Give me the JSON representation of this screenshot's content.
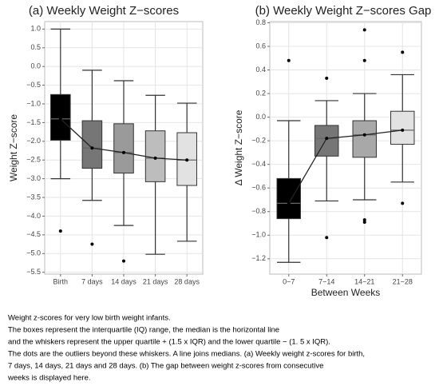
{
  "chart_data": [
    {
      "type": "box",
      "title": "(a) Weekly Weight Z−scores",
      "y_label": "Weight Z−score",
      "categories": [
        "Birth",
        "7 days",
        "14 days",
        "21 days",
        "28 days"
      ],
      "ylim": [
        -5.55,
        1.2
      ],
      "yticks": [
        {
          "value": 1.0,
          "label": "1.0"
        },
        {
          "value": 0.5,
          "label": "0.5"
        },
        {
          "value": 0.0,
          "label": "0.0"
        },
        {
          "value": -0.5,
          "label": "−0.5"
        },
        {
          "value": -1.0,
          "label": "−1.0"
        },
        {
          "value": -1.5,
          "label": "−1.5"
        },
        {
          "value": -2.0,
          "label": "−2.0"
        },
        {
          "value": -2.5,
          "label": "−2.5"
        },
        {
          "value": -3.0,
          "label": "−3.0"
        },
        {
          "value": -3.5,
          "label": "−3.5"
        },
        {
          "value": -4.0,
          "label": "−4.0"
        },
        {
          "value": -4.5,
          "label": "−4.5"
        },
        {
          "value": -5.0,
          "label": "−5.0"
        },
        {
          "value": -5.5,
          "label": "−5.5"
        }
      ],
      "grid": true,
      "boxes": [
        {
          "whisker_high": 1.0,
          "q3": -0.75,
          "median": -1.4,
          "q1": -1.97,
          "whisker_low": -3.0,
          "outliers": [
            -4.4
          ],
          "color": "#000000"
        },
        {
          "whisker_high": -0.1,
          "q3": -1.45,
          "median": -2.18,
          "q1": -2.72,
          "whisker_low": -3.58,
          "outliers": [
            -4.75
          ],
          "color": "#767676"
        },
        {
          "whisker_high": -0.38,
          "q3": -1.53,
          "median": -2.3,
          "q1": -2.85,
          "whisker_low": -4.25,
          "outliers": [
            -5.2
          ],
          "color": "#9a9a9a"
        },
        {
          "whisker_high": -0.77,
          "q3": -1.72,
          "median": -2.45,
          "q1": -3.08,
          "whisker_low": -5.02,
          "outliers": [],
          "color": "#bdbdbd"
        },
        {
          "whisker_high": -0.98,
          "q3": -1.77,
          "median": -2.5,
          "q1": -3.18,
          "whisker_low": -4.67,
          "outliers": [],
          "color": "#e2e2e2"
        }
      ]
    },
    {
      "type": "box",
      "title": "(b) Weekly Weight Z−scores Gap",
      "y_label": "Δ Weight Z−score",
      "x_label": "Between Weeks",
      "categories": [
        "0−7",
        "7−14",
        "14−21",
        "21−28"
      ],
      "ylim": [
        -1.33,
        0.81
      ],
      "yticks": [
        {
          "value": 0.8,
          "label": "0.8"
        },
        {
          "value": 0.6,
          "label": "0.6"
        },
        {
          "value": 0.4,
          "label": "0.4"
        },
        {
          "value": 0.2,
          "label": "0.2"
        },
        {
          "value": 0.0,
          "label": "0.0"
        },
        {
          "value": -0.2,
          "label": "−0.2"
        },
        {
          "value": -0.4,
          "label": "−0.4"
        },
        {
          "value": -0.6,
          "label": "−0.6"
        },
        {
          "value": -0.8,
          "label": "−0.8"
        },
        {
          "value": -1.0,
          "label": "−1.0"
        },
        {
          "value": -1.2,
          "label": "−1.2"
        }
      ],
      "grid": true,
      "boxes": [
        {
          "whisker_high": -0.03,
          "q3": -0.52,
          "median": -0.73,
          "q1": -0.86,
          "whisker_low": -1.23,
          "outliers": [
            0.48
          ],
          "color": "#000000"
        },
        {
          "whisker_high": 0.14,
          "q3": -0.07,
          "median": -0.18,
          "q1": -0.33,
          "whisker_low": -0.71,
          "outliers": [
            0.33,
            -1.02
          ],
          "color": "#767676"
        },
        {
          "whisker_high": 0.2,
          "q3": -0.03,
          "median": -0.15,
          "q1": -0.34,
          "whisker_low": -0.7,
          "outliers": [
            0.74,
            0.48,
            -0.87,
            -0.89
          ],
          "color": "#a8a8a8"
        },
        {
          "whisker_high": 0.36,
          "q3": 0.05,
          "median": -0.11,
          "q1": -0.23,
          "whisker_low": -0.55,
          "outliers": [
            0.55,
            -0.73
          ],
          "color": "#e2e2e2"
        }
      ]
    }
  ],
  "caption": [
    "Weight z-scores for very low birth weight infants.",
    "The boxes represent the interquartile (IQ) range, the median is the horizontal line",
    "and the whiskers represent the upper quartile + (1.5 x IQR) and the lower quartile − (1. 5 x IQR).",
    "The dots are the outliers beyond these whiskers. A line joins medians. (a) Weekly weight z-scores for birth,",
    "7 days, 14 days, 21 days and 28 days. (b) The gap between weight z-scores from consecutive",
    "weeks is displayed here."
  ]
}
